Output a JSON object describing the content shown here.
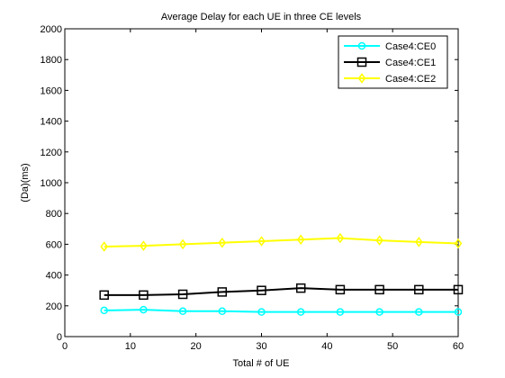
{
  "chart_data": {
    "type": "line",
    "title": "Average Delay for each UE in three CE levels",
    "xlabel": "Total # of UE",
    "ylabel": "(Da)(ms)",
    "xlim": [
      0,
      60
    ],
    "ylim": [
      0,
      2000
    ],
    "xticks": [
      0,
      10,
      20,
      30,
      40,
      50,
      60
    ],
    "yticks": [
      0,
      200,
      400,
      600,
      800,
      1000,
      1200,
      1400,
      1600,
      1800,
      2000
    ],
    "grid": false,
    "legend": "top-right",
    "x": [
      6,
      12,
      18,
      24,
      30,
      36,
      42,
      48,
      54,
      60
    ],
    "series": [
      {
        "name": "Case4:CE0",
        "color": "#00ffff",
        "marker": "circle",
        "values": [
          170,
          175,
          165,
          165,
          160,
          160,
          160,
          160,
          160,
          160
        ]
      },
      {
        "name": "Case4:CE1",
        "color": "#000000",
        "marker": "square",
        "values": [
          270,
          270,
          275,
          290,
          300,
          315,
          305,
          305,
          305,
          305
        ]
      },
      {
        "name": "Case4:CE2",
        "color": "#ffff00",
        "marker": "diamond",
        "values": [
          585,
          590,
          600,
          610,
          620,
          630,
          640,
          625,
          615,
          605
        ]
      }
    ]
  }
}
